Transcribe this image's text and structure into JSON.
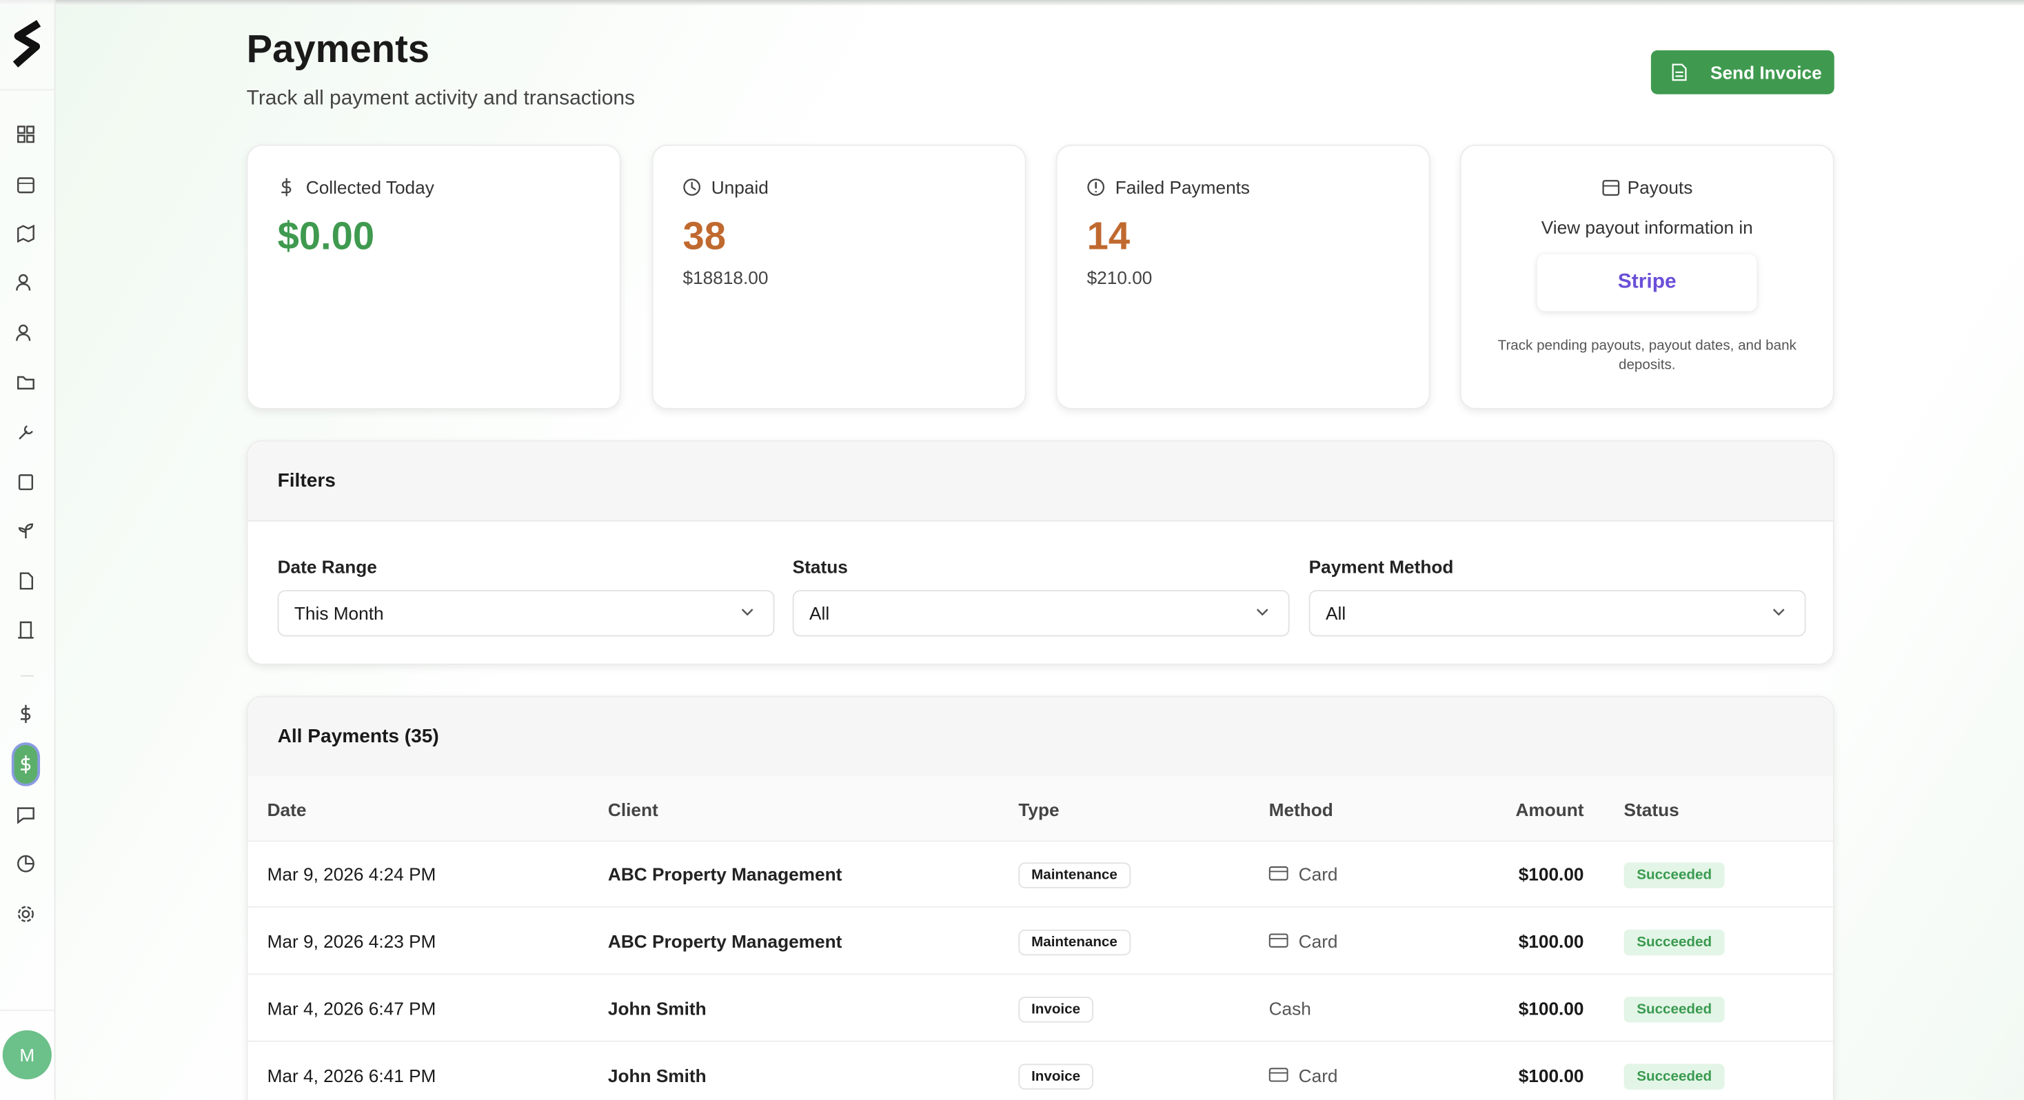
{
  "header": {
    "title": "Payments",
    "subtitle": "Track all payment activity and transactions",
    "button": "Send Invoice"
  },
  "cards": [
    {
      "label": "Collected Today",
      "value": "$0.00"
    },
    {
      "label": "Unpaid",
      "value": "38",
      "sub": "$18818.00"
    },
    {
      "label": "Failed Payments",
      "value": "14",
      "sub": "$210.00"
    }
  ],
  "payouts": {
    "title": "Payouts",
    "text": "View payout information in",
    "link": "Stripe",
    "note": "Track pending payouts, payout dates, and bank deposits."
  },
  "filters": {
    "title": "Filters",
    "fields": [
      {
        "label": "Date Range",
        "value": "This Month"
      },
      {
        "label": "Status",
        "value": "All"
      },
      {
        "label": "Payment Method",
        "value": "All"
      }
    ]
  },
  "table": {
    "title": "All Payments (35)",
    "columns": [
      "Date",
      "Client",
      "Type",
      "Method",
      "Amount",
      "Status"
    ],
    "rows": [
      [
        "Mar 9, 2026 4:24 PM",
        "ABC Property Management",
        "Maintenance",
        "Card",
        "$100.00",
        "Succeeded"
      ],
      [
        "Mar 9, 2026 4:23 PM",
        "ABC Property Management",
        "Maintenance",
        "Card",
        "$100.00",
        "Succeeded"
      ],
      [
        "Mar 4, 2026 6:47 PM",
        "John Smith",
        "Invoice",
        "Cash",
        "$100.00",
        "Succeeded"
      ],
      [
        "Mar 4, 2026 6:41 PM",
        "John Smith",
        "Invoice",
        "Card",
        "$100.00",
        "Succeeded"
      ]
    ]
  },
  "user": {
    "initial": "M"
  }
}
